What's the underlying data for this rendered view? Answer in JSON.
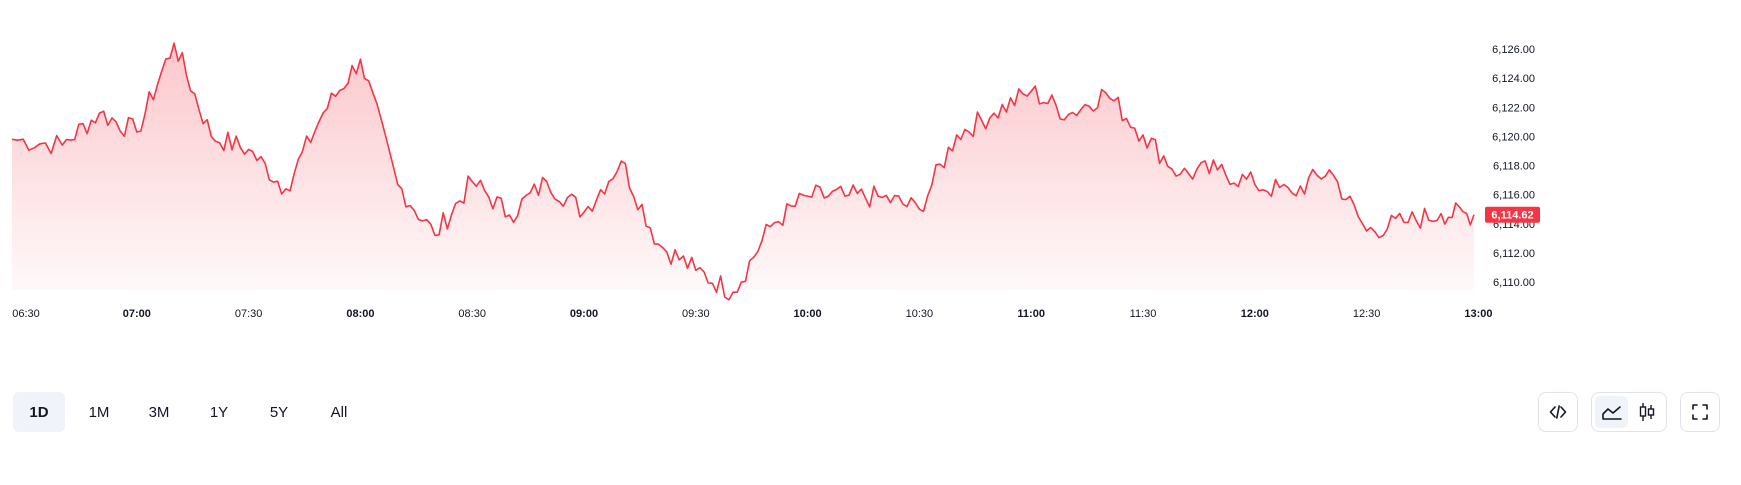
{
  "chart_data": {
    "type": "area",
    "series": [
      {
        "color": "#f23645",
        "x": [
          "06:30",
          "06:40",
          "06:50",
          "07:00",
          "07:10",
          "07:20",
          "07:30",
          "07:40",
          "07:50",
          "08:00",
          "08:10",
          "08:20",
          "08:30",
          "08:40",
          "08:50",
          "09:00",
          "09:10",
          "09:20",
          "09:30",
          "09:40",
          "09:50",
          "10:00",
          "10:10",
          "10:20",
          "10:30",
          "10:40",
          "10:50",
          "11:00",
          "11:10",
          "11:20",
          "11:30",
          "11:40",
          "11:50",
          "12:00",
          "12:10",
          "12:20",
          "12:30",
          "12:40",
          "12:50",
          "13:00"
        ],
        "values": [
          6119.8,
          6119.4,
          6121.6,
          6120.3,
          6126.4,
          6120.0,
          6119.1,
          6116.4,
          6121.6,
          6125.3,
          6116.7,
          6113.2,
          6116.9,
          6114.6,
          6116.9,
          6114.8,
          6118.3,
          6112.6,
          6110.8,
          6109.3,
          6113.8,
          6115.9,
          6115.9,
          6115.8,
          6115.0,
          6120.1,
          6121.6,
          6123.1,
          6121.5,
          6123.0,
          6120.1,
          6117.4,
          6117.7,
          6116.7,
          6116.1,
          6117.7,
          6113.5,
          6114.1,
          6114.7,
          6114.62
        ]
      }
    ],
    "y_ticks": [
      "6,110.00",
      "6,112.00",
      "6,114.00",
      "6,116.00",
      "6,118.00",
      "6,120.00",
      "6,122.00",
      "6,124.00",
      "6,126.00"
    ],
    "ylim": [
      6110,
      6126
    ],
    "x_ticks": [
      {
        "label": "06:30",
        "major": false
      },
      {
        "label": "07:00",
        "major": true
      },
      {
        "label": "07:30",
        "major": false
      },
      {
        "label": "08:00",
        "major": true
      },
      {
        "label": "08:30",
        "major": false
      },
      {
        "label": "09:00",
        "major": true
      },
      {
        "label": "09:30",
        "major": false
      },
      {
        "label": "10:00",
        "major": true
      },
      {
        "label": "10:30",
        "major": false
      },
      {
        "label": "11:00",
        "major": true
      },
      {
        "label": "11:30",
        "major": false
      },
      {
        "label": "12:00",
        "major": true
      },
      {
        "label": "12:30",
        "major": false
      },
      {
        "label": "13:00",
        "major": true
      }
    ],
    "last_price_label": "6,114.62",
    "line_color": "#f23645",
    "fill_color": "#f23645",
    "grid": false,
    "y_axis_position": "right"
  },
  "toolbar": {
    "ranges": [
      "1D",
      "1M",
      "3M",
      "1Y",
      "5Y",
      "All"
    ],
    "active_range": "1D"
  },
  "icons": {
    "embed": "code-icon",
    "area_style": "area-chart-icon",
    "candle_style": "candlestick-icon",
    "fullscreen": "fullscreen-icon"
  }
}
